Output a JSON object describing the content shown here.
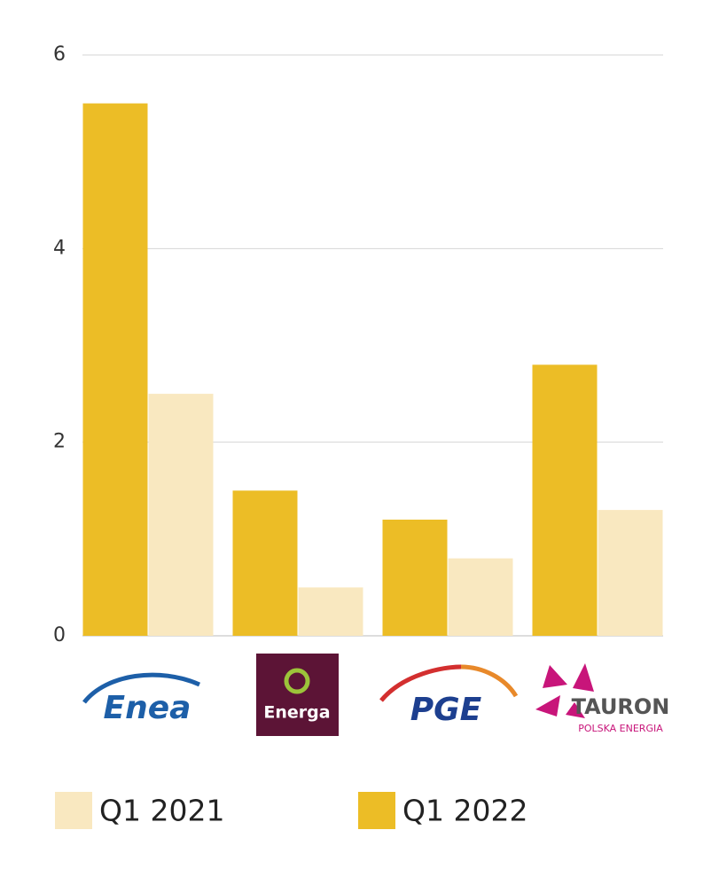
{
  "chart_data": {
    "type": "bar",
    "categories": [
      "Enea",
      "Energa",
      "PGE",
      "TAURON"
    ],
    "logo_sublabels": [
      null,
      null,
      null,
      "POLSKA ENERGIA"
    ],
    "series": [
      {
        "name": "Q1 2021",
        "color": "#f9e8c0",
        "values": [
          2.5,
          0.5,
          0.8,
          1.3
        ]
      },
      {
        "name": "Q1 2022",
        "color": "#ecbd26",
        "values": [
          5.5,
          1.5,
          1.2,
          2.8
        ]
      }
    ],
    "ylim": [
      0,
      6
    ],
    "yticks": [
      0,
      2,
      4,
      6
    ],
    "grid": true
  }
}
